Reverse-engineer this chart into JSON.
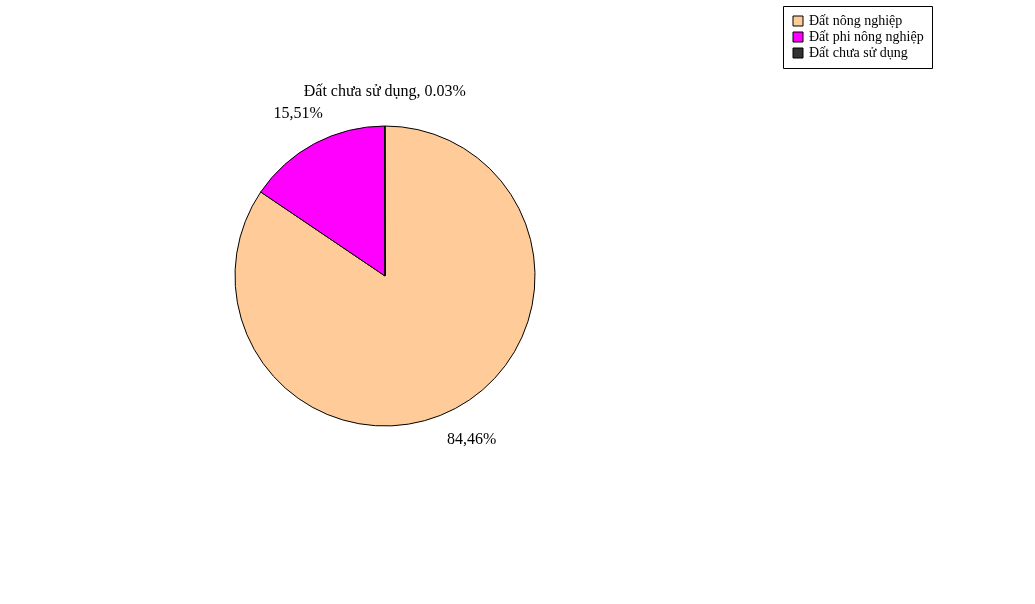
{
  "chart_data": {
    "type": "pie",
    "categories": [
      "Đất nông nghiệp",
      "Đất phi nông nghiệp",
      "Đất chưa sử dụng"
    ],
    "values": [
      84.46,
      15.51,
      0.03
    ],
    "colors": [
      "#ffcc99",
      "#ff00ff",
      "#333333"
    ],
    "value_labels": [
      "84,46%",
      "15,51%",
      "Đất chưa sử dụng, 0.03%"
    ],
    "legend": "right"
  }
}
